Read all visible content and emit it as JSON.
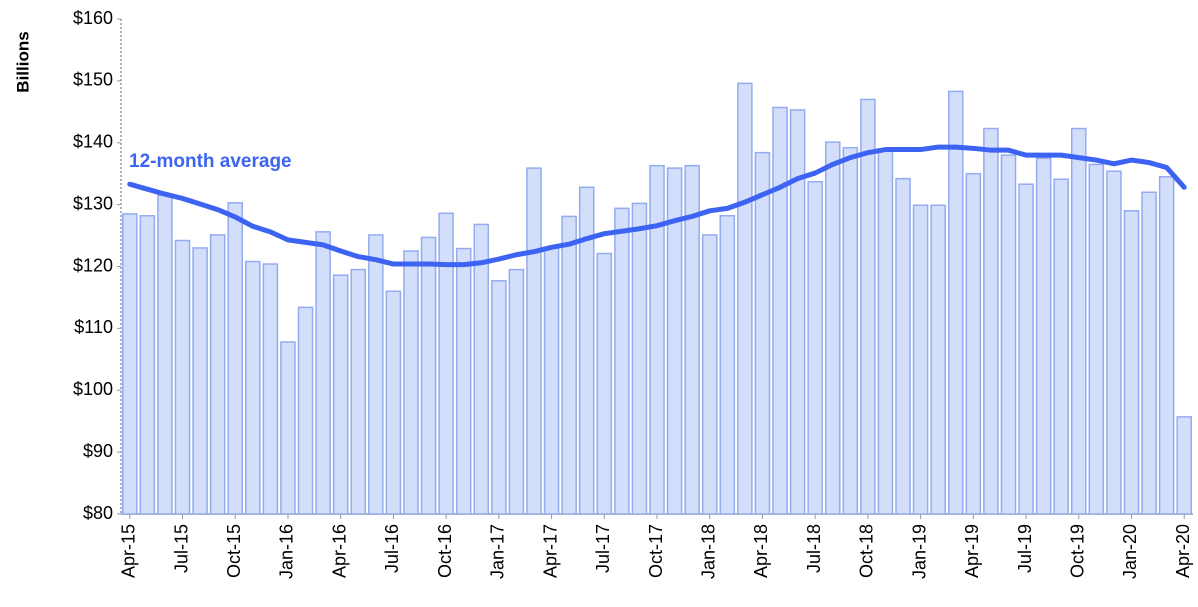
{
  "chart_data": {
    "type": "combo",
    "y_label": "Billions",
    "annotation": "12-month average",
    "categories": [
      "Apr-15",
      null,
      null,
      "Jul-15",
      null,
      null,
      "Oct-15",
      null,
      null,
      "Jan-16",
      null,
      null,
      "Apr-16",
      null,
      null,
      "Jul-16",
      null,
      null,
      "Oct-16",
      null,
      null,
      "Jan-17",
      null,
      null,
      "Apr-17",
      null,
      null,
      "Jul-17",
      null,
      null,
      "Oct-17",
      null,
      null,
      "Jan-18",
      null,
      null,
      "Apr-18",
      null,
      null,
      "Jul-18",
      null,
      null,
      "Oct-18",
      null,
      null,
      "Jan-19",
      null,
      null,
      "Apr-19",
      null,
      null,
      "Jul-19",
      null,
      null,
      "Oct-19",
      null,
      null,
      "Jan-20",
      null,
      null,
      "Apr-20"
    ],
    "series": [
      {
        "type": "bar",
        "color": "#d3defb",
        "stroke": "#94acef",
        "values": [
          128.5,
          128.2,
          131.5,
          124.2,
          123,
          125.1,
          130.3,
          120.8,
          120.4,
          107.8,
          113.4,
          125.6,
          118.6,
          119.5,
          125.1,
          116,
          122.5,
          124.7,
          128.6,
          122.9,
          126.8,
          117.7,
          119.5,
          135.9,
          123,
          128.1,
          132.8,
          122.1,
          129.4,
          130.2,
          136.3,
          135.9,
          136.3,
          125.1,
          128.2,
          149.6,
          138.4,
          145.7,
          145.3,
          133.7,
          140.1,
          139.2,
          147,
          139,
          134.2,
          129.9,
          129.9,
          148.3,
          135,
          142.3,
          138,
          133.3,
          137.5,
          134.1,
          142.3,
          136.5,
          135.4,
          129,
          132,
          134.5,
          95.7
        ]
      },
      {
        "type": "line",
        "name": "12-month average",
        "color": "#3d63f2",
        "values": [
          133.3,
          132.5,
          131.7,
          131,
          130.1,
          129.2,
          128,
          126.5,
          125.6,
          124.3,
          123.9,
          123.5,
          122.5,
          121.6,
          121.1,
          120.4,
          120.4,
          120.4,
          120.3,
          120.3,
          120.6,
          121.2,
          121.9,
          122.4,
          123.1,
          123.6,
          124.5,
          125.3,
          125.7,
          126.1,
          126.6,
          127.4,
          128.1,
          129,
          129.4,
          130.4,
          131.6,
          132.8,
          134.2,
          135.1,
          136.5,
          137.6,
          138.4,
          138.9,
          138.9,
          138.9,
          139.3,
          139.3,
          139.1,
          138.8,
          138.8,
          138,
          138,
          138,
          137.6,
          137.2,
          136.6,
          137.2,
          136.8,
          136,
          132.8
        ]
      }
    ],
    "ylim": [
      80,
      160
    ],
    "yticks": [
      {
        "value": 80,
        "label": "$80"
      },
      {
        "value": 90,
        "label": "$90"
      },
      {
        "value": 100,
        "label": "$100"
      },
      {
        "value": 110,
        "label": "$110"
      },
      {
        "value": 120,
        "label": "$120"
      },
      {
        "value": 130,
        "label": "$130"
      },
      {
        "value": 140,
        "label": "$140"
      },
      {
        "value": 150,
        "label": "$150"
      },
      {
        "value": 160,
        "label": "$160"
      }
    ],
    "grid": false
  }
}
